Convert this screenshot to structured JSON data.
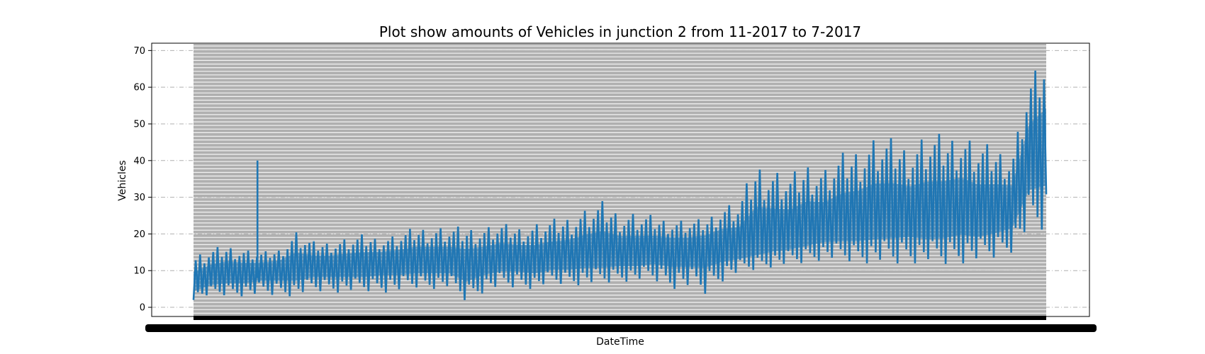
{
  "chart_data": {
    "type": "line",
    "title": "Plot show amounts of Vehicles in junction 2 from 11-2017 to 7-2017",
    "xlabel": "DateTime",
    "ylabel": "Vehicles",
    "ylim": [
      -2.5,
      72
    ],
    "yticks": [
      0,
      10,
      20,
      30,
      40,
      50,
      60,
      70
    ],
    "grid": true,
    "colors": {
      "line": "#1f77b4",
      "background_band": "#b0b0b0",
      "grid": "#b0b0b0"
    },
    "series": [
      {
        "name": "",
        "x": [
          0,
          2,
          4,
          6,
          8,
          10,
          12,
          14,
          16,
          18,
          20,
          22,
          24,
          26,
          28,
          30,
          32,
          34,
          36,
          38,
          40,
          42,
          44,
          46,
          48,
          50,
          52,
          54,
          56,
          58,
          60,
          62,
          64,
          66,
          68,
          70,
          72,
          74,
          76,
          78,
          80,
          82,
          84,
          86,
          88,
          90,
          92,
          94,
          96,
          98,
          100
        ],
        "values": [
          6,
          8,
          9,
          9,
          10,
          10,
          10,
          11,
          11,
          11,
          11,
          12,
          12,
          12,
          12,
          12,
          11,
          12,
          13,
          13,
          12,
          13,
          13,
          14,
          14,
          14,
          14,
          15,
          15,
          15,
          16,
          16,
          16,
          17,
          18,
          19,
          20,
          21,
          22,
          22,
          23,
          24,
          24,
          23,
          24,
          25,
          24,
          25,
          26,
          40,
          42
        ],
        "min": [
          2,
          3,
          3,
          3,
          3,
          3,
          3,
          4,
          4,
          4,
          4,
          4,
          4,
          5,
          5,
          5,
          1,
          4,
          5,
          5,
          5,
          6,
          6,
          6,
          6,
          7,
          7,
          7,
          5,
          5,
          3,
          7,
          9,
          10,
          11,
          11,
          12,
          13,
          12,
          12,
          12,
          11,
          12,
          12,
          11,
          12,
          12,
          13,
          15,
          20,
          20
        ],
        "max": [
          14,
          16,
          17,
          16,
          15,
          16,
          21,
          18,
          18,
          19,
          20,
          19,
          20,
          22,
          22,
          22,
          22,
          22,
          23,
          22,
          23,
          24,
          25,
          27,
          29,
          26,
          26,
          25,
          24,
          24,
          24,
          28,
          29,
          40,
          38,
          36,
          40,
          38,
          42,
          44,
          47,
          46,
          44,
          48,
          47,
          48,
          45,
          44,
          42,
          62,
          69
        ]
      }
    ],
    "spikes": [
      {
        "x": 7.5,
        "value": 40
      }
    ]
  }
}
